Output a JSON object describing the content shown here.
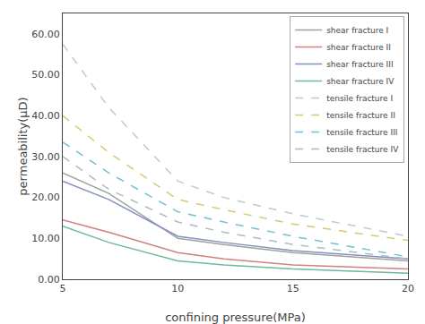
{
  "chart_data": {
    "type": "line",
    "x": [
      5,
      7,
      10,
      12,
      15,
      20
    ],
    "series": [
      {
        "name": "shear fracture I",
        "color": "#a0a0a0",
        "line_style": "solid",
        "values": [
          26.0,
          21.0,
          10.0,
          8.5,
          6.5,
          4.5
        ]
      },
      {
        "name": "shear fracture II",
        "color": "#d08080",
        "line_style": "solid",
        "values": [
          14.5,
          11.5,
          6.5,
          5.0,
          3.5,
          2.5
        ]
      },
      {
        "name": "shear fracture III",
        "color": "#8090c0",
        "line_style": "solid",
        "values": [
          24.0,
          19.5,
          10.5,
          9.0,
          7.0,
          5.0
        ]
      },
      {
        "name": "shear fracture IV",
        "color": "#70b8a0",
        "line_style": "solid",
        "values": [
          13.0,
          9.0,
          4.5,
          3.5,
          2.5,
          1.5
        ]
      },
      {
        "name": "tensile fracture I",
        "color": "#c0c8d0",
        "line_style": "dashed",
        "values": [
          57.5,
          42.0,
          24.0,
          20.0,
          16.0,
          10.5
        ]
      },
      {
        "name": "tensile fracture II",
        "color": "#d8c870",
        "line_style": "dashed",
        "values": [
          40.0,
          31.0,
          19.5,
          17.0,
          13.5,
          9.5
        ]
      },
      {
        "name": "tensile fracture III",
        "color": "#70c0d8",
        "line_style": "dashed",
        "values": [
          33.5,
          26.0,
          16.5,
          14.0,
          10.5,
          5.5
        ]
      },
      {
        "name": "tensile fracture IV",
        "color": "#b0b8c0",
        "line_style": "dashed",
        "values": [
          30.0,
          22.0,
          14.0,
          11.5,
          8.5,
          5.0
        ]
      }
    ],
    "xlabel": "confining pressure(MPa)",
    "ylabel": "permeability(μD)",
    "xlim": [
      5,
      20
    ],
    "ylim": [
      0,
      65
    ],
    "xticks": [
      5,
      10,
      15,
      20
    ],
    "yticks": [
      {
        "value": 0.0,
        "label": "0.00"
      },
      {
        "value": 10.0,
        "label": "10.00"
      },
      {
        "value": 20.0,
        "label": "20.00"
      },
      {
        "value": 30.0,
        "label": "30.00"
      },
      {
        "value": 40.0,
        "label": "40.00"
      },
      {
        "value": 50.0,
        "label": "50.00"
      },
      {
        "value": 60.0,
        "label": "60.00"
      }
    ],
    "grid": false,
    "legend": "upper right"
  }
}
